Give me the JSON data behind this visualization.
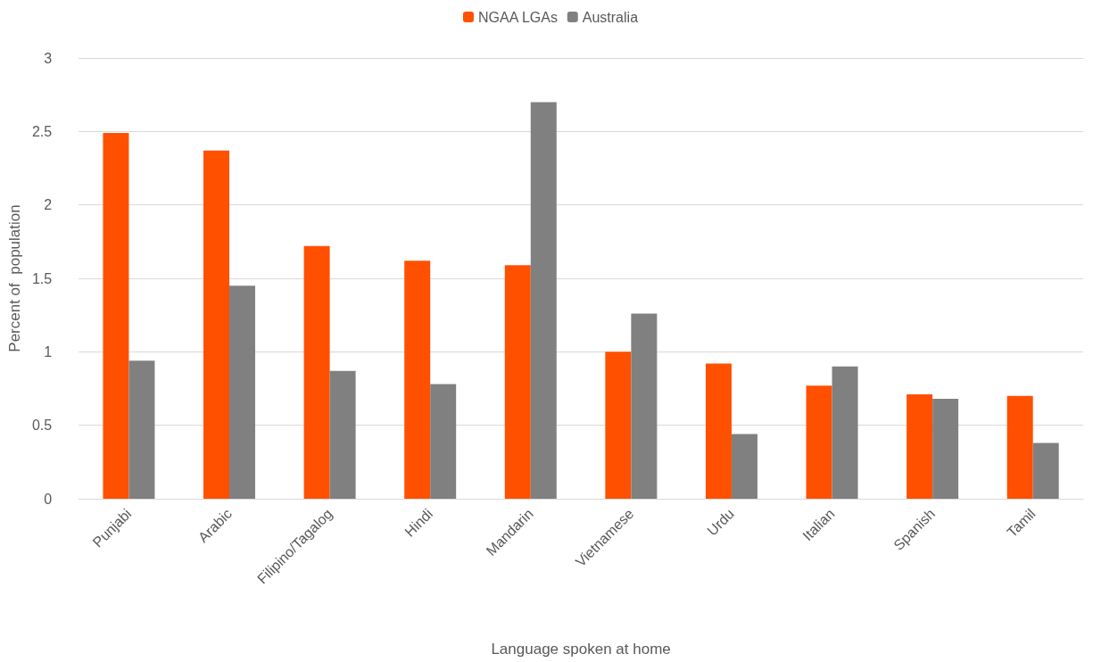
{
  "chart_data": {
    "type": "bar",
    "xlabel": "Language spoken at home",
    "ylabel": "Percent of  population",
    "categories": [
      "Punjabi",
      "Arabic",
      "Filipino/Tagalog",
      "Hindi",
      "Mandarin",
      "Vietnamese",
      "Urdu",
      "Italian",
      "Spanish",
      "Tamil"
    ],
    "series": [
      {
        "name": "NGAA LGAs",
        "color": "#ff5000",
        "values": [
          2.49,
          2.37,
          1.72,
          1.62,
          1.59,
          1.0,
          0.92,
          0.77,
          0.71,
          0.7
        ]
      },
      {
        "name": "Australia",
        "color": "#808080",
        "values": [
          0.94,
          1.45,
          0.87,
          0.78,
          2.7,
          1.26,
          0.44,
          0.9,
          0.68,
          0.38
        ]
      }
    ],
    "ylim": [
      0,
      3
    ],
    "yticks": [
      0,
      0.5,
      1,
      1.5,
      2,
      2.5,
      3
    ],
    "grid": "y",
    "legend": "top"
  }
}
